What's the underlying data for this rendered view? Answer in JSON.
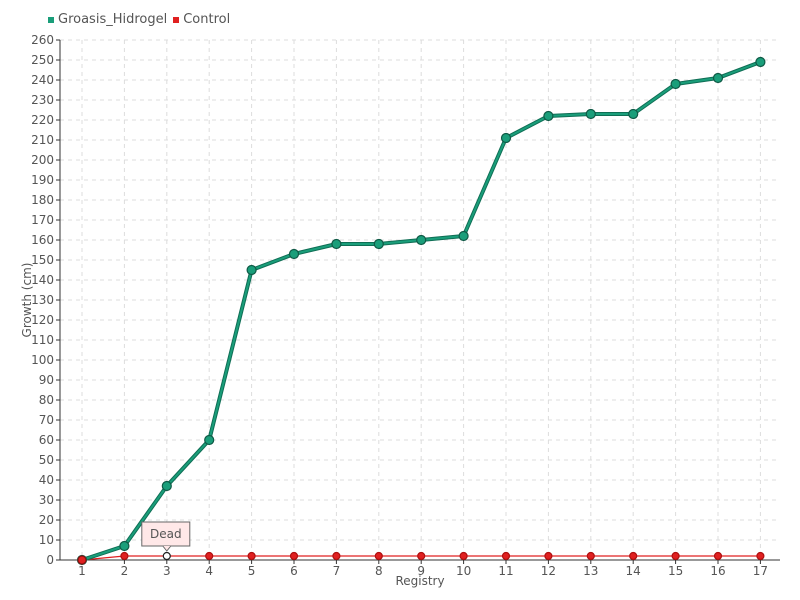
{
  "chart_data": {
    "type": "line",
    "title": "",
    "xlabel": "Registry",
    "ylabel": "Growth (cm)",
    "x": [
      "1",
      "2",
      "3",
      "4",
      "5",
      "6",
      "7",
      "8",
      "9",
      "10",
      "11",
      "12",
      "13",
      "14",
      "15",
      "16",
      "17"
    ],
    "ylim": [
      0,
      260
    ],
    "yticks": [
      0,
      10,
      20,
      30,
      40,
      50,
      60,
      70,
      80,
      90,
      100,
      110,
      120,
      130,
      140,
      150,
      160,
      170,
      180,
      190,
      200,
      210,
      220,
      230,
      240,
      250,
      260
    ],
    "grid": true,
    "legend_position": "top-left",
    "series": [
      {
        "name": "Groasis_Hidrogel",
        "color": "#1a9e7a",
        "values": [
          0,
          7,
          37,
          60,
          145,
          153,
          158,
          158,
          160,
          162,
          211,
          222,
          223,
          223,
          238,
          241,
          249
        ]
      },
      {
        "name": "Control",
        "color": "#e02020",
        "values": [
          0,
          2,
          2,
          2,
          2,
          2,
          2,
          2,
          2,
          2,
          2,
          2,
          2,
          2,
          2,
          2,
          2
        ]
      }
    ],
    "annotations": [
      {
        "text": "Dead",
        "series": "Control",
        "x": "3",
        "y": 2
      }
    ]
  }
}
